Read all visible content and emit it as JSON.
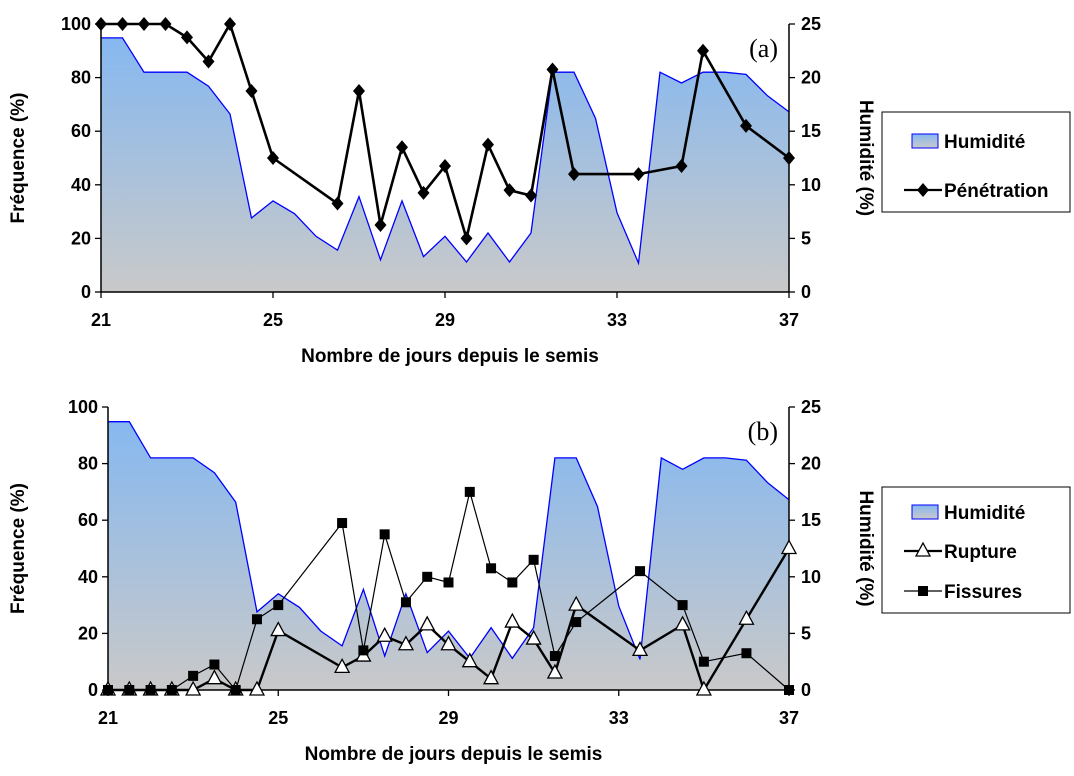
{
  "chart_data": [
    {
      "type": "area+line",
      "panel_tag": "(a)",
      "xlabel": "Nombre de jours depuis le semis",
      "ylabel": "Fréquence (%)",
      "ylabel_right": "Humidité (%)",
      "xlim": [
        21,
        37
      ],
      "ylim": [
        0,
        100
      ],
      "ylim_right": [
        0,
        25
      ],
      "xticks": [
        "21",
        "25",
        "29",
        "33",
        "37"
      ],
      "yticks": [
        "0",
        "20",
        "40",
        "60",
        "80",
        "100"
      ],
      "yticks_right": [
        "0",
        "5",
        "10",
        "15",
        "20",
        "25"
      ],
      "grid": false,
      "legend_position": "right",
      "humidity": {
        "name": "Humidité",
        "color": "#0000ff",
        "axis": "right",
        "x": [
          21,
          21.5,
          22,
          22.5,
          23,
          23.5,
          24,
          24.5,
          25,
          25.5,
          26,
          26.5,
          27,
          27.5,
          28,
          28.5,
          29,
          29.5,
          30,
          30.5,
          31,
          31.5,
          32,
          32.5,
          33,
          33.5,
          34,
          34.5,
          35,
          35.5,
          36,
          36.5,
          37
        ],
        "y": [
          23.7,
          23.7,
          20.5,
          20.5,
          20.5,
          19.2,
          16.6,
          6.9,
          8.5,
          7.3,
          5.2,
          3.9,
          8.9,
          3.0,
          8.5,
          3.3,
          5.2,
          2.8,
          5.5,
          2.8,
          5.5,
          20.5,
          20.5,
          16.2,
          7.4,
          2.7,
          20.5,
          19.5,
          20.5,
          20.5,
          20.3,
          18.3,
          16.8
        ]
      },
      "series": [
        {
          "name": "Pénétration",
          "marker": "diamond",
          "color": "#000000",
          "axis": "left",
          "x": [
            21,
            21.5,
            22,
            22.5,
            23,
            23.5,
            24,
            24.5,
            25,
            26.5,
            27,
            27.5,
            28,
            28.5,
            29,
            29.5,
            30,
            30.5,
            31,
            31.5,
            32,
            33.5,
            34.5,
            35,
            36,
            37
          ],
          "y": [
            100,
            100,
            100,
            100,
            95,
            86,
            100,
            75,
            50,
            33,
            75,
            25,
            54,
            37,
            47,
            20,
            55,
            38,
            36,
            83,
            44,
            44,
            47,
            90,
            62,
            50
          ]
        }
      ]
    },
    {
      "type": "area+line",
      "panel_tag": "(b)",
      "xlabel": "Nombre de jours depuis le semis",
      "ylabel": "Fréquence (%)",
      "ylabel_right": "Humidité (%)",
      "xlim": [
        21,
        37
      ],
      "ylim": [
        0,
        100
      ],
      "ylim_right": [
        0,
        25
      ],
      "xticks": [
        "21",
        "25",
        "29",
        "33",
        "37"
      ],
      "yticks": [
        "0",
        "20",
        "40",
        "60",
        "80",
        "100"
      ],
      "yticks_right": [
        "0",
        "5",
        "10",
        "15",
        "20",
        "25"
      ],
      "grid": false,
      "legend_position": "right",
      "humidity": {
        "name": "Humidité",
        "color": "#0000ff",
        "axis": "right",
        "x": [
          21,
          21.5,
          22,
          22.5,
          23,
          23.5,
          24,
          24.5,
          25,
          25.5,
          26,
          26.5,
          27,
          27.5,
          28,
          28.5,
          29,
          29.5,
          30,
          30.5,
          31,
          31.5,
          32,
          32.5,
          33,
          33.5,
          34,
          34.5,
          35,
          35.5,
          36,
          36.5,
          37
        ],
        "y": [
          23.7,
          23.7,
          20.5,
          20.5,
          20.5,
          19.2,
          16.6,
          6.9,
          8.5,
          7.3,
          5.2,
          3.9,
          8.9,
          3.0,
          8.5,
          3.3,
          5.2,
          2.8,
          5.5,
          2.8,
          5.5,
          20.5,
          20.5,
          16.2,
          7.4,
          2.7,
          20.5,
          19.5,
          20.5,
          20.5,
          20.3,
          18.3,
          16.8
        ]
      },
      "series": [
        {
          "name": "Rupture",
          "marker": "triangle",
          "color": "#000000",
          "axis": "left",
          "x": [
            21,
            21.5,
            22,
            22.5,
            23,
            23.5,
            24,
            24.5,
            25,
            26.5,
            27,
            27.5,
            28,
            28.5,
            29,
            29.5,
            30,
            30.5,
            31,
            31.5,
            32,
            33.5,
            34.5,
            35,
            36,
            37
          ],
          "y": [
            0,
            0,
            0,
            0,
            0,
            4,
            0,
            0,
            21,
            8,
            12,
            19,
            16,
            23,
            16,
            10,
            4,
            24,
            18,
            6,
            30,
            14,
            23,
            0,
            25,
            50
          ]
        },
        {
          "name": "Fissures",
          "marker": "square",
          "color": "#000000",
          "axis": "left",
          "x": [
            21,
            21.5,
            22,
            22.5,
            23,
            23.5,
            24,
            24.5,
            25,
            26.5,
            27,
            27.5,
            28,
            28.5,
            29,
            29.5,
            30,
            30.5,
            31,
            31.5,
            32,
            33.5,
            34.5,
            35,
            36,
            37
          ],
          "y": [
            0,
            0,
            0,
            0,
            5,
            9,
            0,
            25,
            30,
            59,
            14,
            55,
            31,
            40,
            38,
            70,
            43,
            38,
            46,
            12,
            24,
            42,
            30,
            10,
            13,
            0
          ]
        }
      ]
    }
  ]
}
